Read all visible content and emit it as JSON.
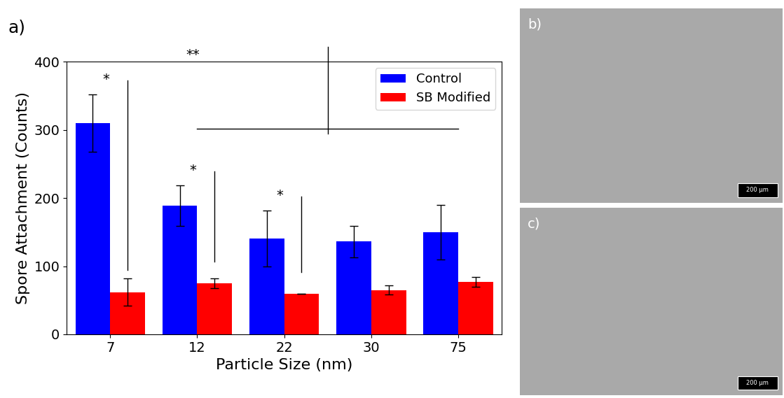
{
  "chart_data": {
    "type": "bar",
    "panel_label": "a)",
    "x_label": "Particle Size (nm)",
    "y_label": "Spore Attachment (Counts)",
    "categories": [
      "7",
      "12",
      "22",
      "30",
      "75"
    ],
    "series": [
      {
        "name": "Control",
        "color": "#0000ff",
        "values": [
          310,
          189,
          141,
          136,
          150
        ],
        "errors": [
          42,
          30,
          41,
          23,
          40
        ]
      },
      {
        "name": "SB Modified",
        "color": "#ff0000",
        "values": [
          62,
          75,
          59,
          65,
          77
        ],
        "errors": [
          20,
          7,
          0,
          7,
          7
        ]
      }
    ],
    "ylim": [
      0,
      400
    ],
    "yticks": [
      0,
      100,
      200,
      300,
      400
    ],
    "legend": "upper right",
    "annotations": [
      "*",
      "*",
      "*",
      "**"
    ]
  },
  "images": [
    {
      "label": "b)",
      "scale_bar": "200 µm"
    },
    {
      "label": "c)",
      "scale_bar": "200 µm"
    }
  ]
}
